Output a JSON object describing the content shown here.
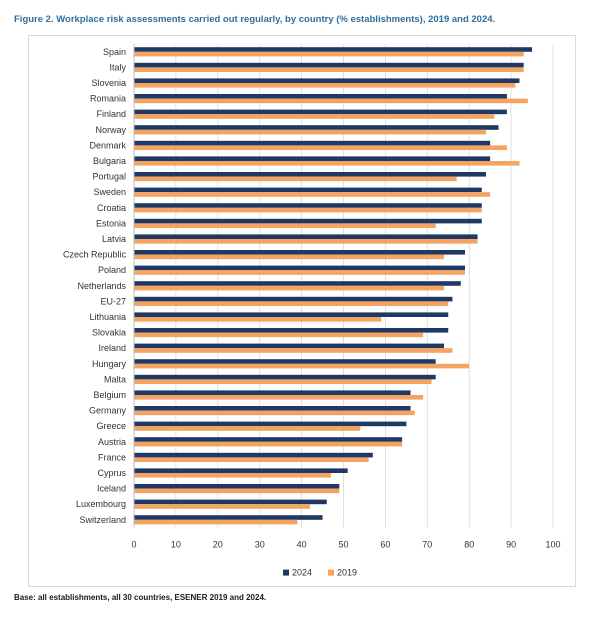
{
  "header": {
    "title": "Figure 2. Workplace risk assessments carried out regularly, by country (% establishments), 2019 and 2024."
  },
  "footer": {
    "note": "Base: all establishments, all 30 countries, ESENER 2019 and 2024."
  },
  "colors": {
    "series_2024": "#1f3864",
    "series_2019": "#f4a460",
    "grid": "#d9d9d9"
  },
  "chart_data": {
    "type": "bar",
    "orientation": "horizontal",
    "categories": [
      "Spain",
      "Italy",
      "Slovenia",
      "Romania",
      "Finland",
      "Norway",
      "Denmark",
      "Bulgaria",
      "Portugal",
      "Sweden",
      "Croatia",
      "Estonia",
      "Latvia",
      "Czech Republic",
      "Poland",
      "Netherlands",
      "EU-27",
      "Lithuania",
      "Slovakia",
      "Ireland",
      "Hungary",
      "Malta",
      "Belgium",
      "Germany",
      "Greece",
      "Austria",
      "France",
      "Cyprus",
      "Iceland",
      "Luxembourg",
      "Switzerland"
    ],
    "series": [
      {
        "name": "2024",
        "values": [
          95,
          93,
          92,
          89,
          89,
          87,
          85,
          85,
          84,
          83,
          83,
          83,
          82,
          79,
          79,
          78,
          76,
          75,
          75,
          74,
          72,
          72,
          66,
          66,
          65,
          64,
          57,
          51,
          49,
          46,
          45
        ]
      },
      {
        "name": "2019",
        "values": [
          93,
          93,
          91,
          94,
          86,
          84,
          89,
          92,
          77,
          85,
          83,
          72,
          82,
          74,
          79,
          74,
          75,
          59,
          69,
          76,
          80,
          71,
          69,
          67,
          54,
          64,
          56,
          47,
          49,
          42,
          39
        ]
      }
    ],
    "xlim": [
      0,
      100
    ],
    "xticks": [
      0,
      10,
      20,
      30,
      40,
      50,
      60,
      70,
      80,
      90,
      100
    ],
    "xlabel": "",
    "ylabel": "",
    "grid": true,
    "legend": {
      "position": "bottom",
      "entries": [
        "2024",
        "2019"
      ]
    }
  }
}
